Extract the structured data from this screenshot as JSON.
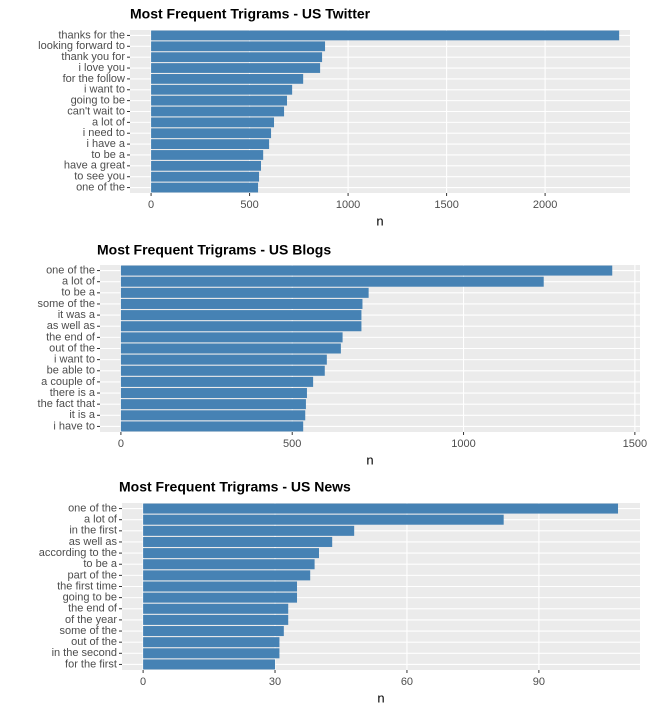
{
  "chart_data": [
    {
      "type": "bar",
      "orientation": "horizontal",
      "title": "Most Frequent Trigrams - US Twitter",
      "x_label": "n",
      "color": "#4682b4",
      "grid": true,
      "categories": [
        "thanks for the",
        "looking forward to",
        "thank you for",
        "i love you",
        "for the follow",
        "i want to",
        "going to be",
        "can't wait to",
        "a lot of",
        "i need to",
        "i have a",
        "to be a",
        "have a great",
        "to see you",
        "one of the"
      ],
      "values": [
        2376,
        883,
        868,
        858,
        772,
        716,
        690,
        675,
        624,
        609,
        599,
        569,
        558,
        548,
        543
      ],
      "xlim": [
        -107,
        2431
      ],
      "xticks": [
        0,
        500,
        1000,
        1500,
        2000
      ]
    },
    {
      "type": "bar",
      "orientation": "horizontal",
      "title": "Most Frequent Trigrams - US Blogs",
      "x_label": "n",
      "color": "#4682b4",
      "grid": true,
      "categories": [
        "one of the",
        "a lot of",
        "to be a",
        "some of the",
        "it was a",
        "as well as",
        "the end of",
        "out of the",
        "i want to",
        "be able to",
        "a couple of",
        "there is a",
        "the fact that",
        "it is a",
        "i have to"
      ],
      "values": [
        1434,
        1234,
        723,
        705,
        702,
        702,
        647,
        642,
        601,
        595,
        561,
        543,
        540,
        538,
        532
      ],
      "xlim": [
        -61,
        1515
      ],
      "xticks": [
        0,
        500,
        1000,
        1500
      ]
    },
    {
      "type": "bar",
      "orientation": "horizontal",
      "title": "Most Frequent Trigrams - US News",
      "x_label": "n",
      "color": "#4682b4",
      "grid": true,
      "categories": [
        "one of the",
        "a lot of",
        "in the first",
        "as well as",
        "according to the",
        "to be a",
        "part of the",
        "the first time",
        "going to be",
        "the end of",
        "of the year",
        "some of the",
        "out of the",
        "in the second",
        "for the first"
      ],
      "values": [
        108,
        82,
        48,
        43,
        40,
        39,
        38,
        35,
        35,
        33,
        33,
        32,
        31,
        31,
        30
      ],
      "xlim": [
        -4.8,
        113
      ],
      "xticks": [
        0,
        30,
        60,
        90
      ]
    }
  ]
}
